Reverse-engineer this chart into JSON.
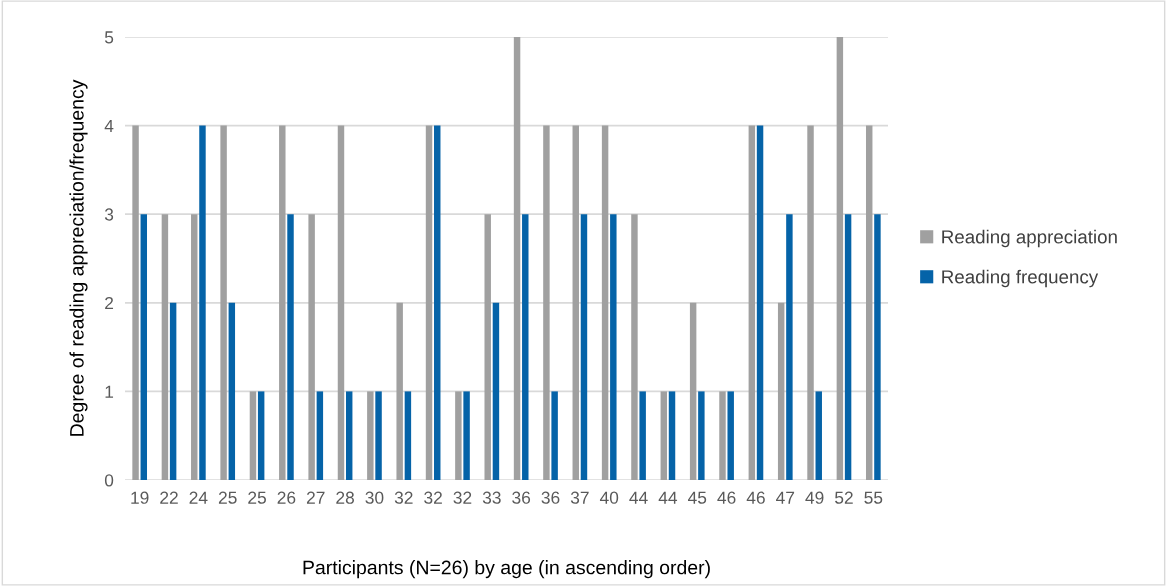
{
  "chart_data": {
    "type": "bar",
    "xlabel": "Participants (N=26) by age (in ascending order)",
    "ylabel": "Degree of reading appreciation/frequency",
    "categories": [
      "19",
      "22",
      "24",
      "25",
      "25",
      "26",
      "27",
      "28",
      "30",
      "32",
      "32",
      "32",
      "33",
      "36",
      "36",
      "37",
      "40",
      "44",
      "44",
      "45",
      "46",
      "46",
      "47",
      "49",
      "52",
      "55"
    ],
    "series": [
      {
        "name": "Reading appreciation",
        "color": "#a0a0a0",
        "values": [
          4,
          3,
          3,
          4,
          1,
          4,
          3,
          4,
          1,
          2,
          4,
          1,
          3,
          5,
          4,
          4,
          4,
          3,
          1,
          2,
          1,
          4,
          2,
          4,
          5,
          4
        ]
      },
      {
        "name": "Reading frequency",
        "color": "#0563a8",
        "values": [
          3,
          2,
          4,
          2,
          1,
          3,
          1,
          1,
          1,
          1,
          4,
          1,
          2,
          3,
          1,
          3,
          3,
          1,
          1,
          1,
          1,
          4,
          3,
          1,
          3,
          3
        ]
      }
    ],
    "ylim": [
      0,
      5
    ],
    "yticks": [
      0,
      1,
      2,
      3,
      4,
      5
    ],
    "grid": "y",
    "legend": "right"
  }
}
